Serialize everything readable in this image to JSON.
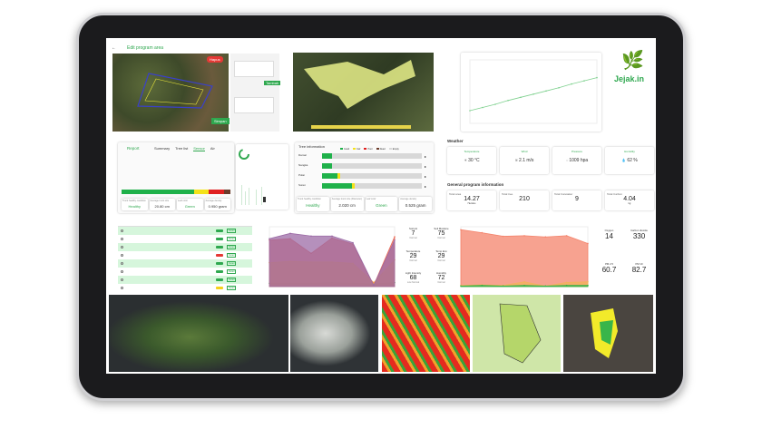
{
  "logo": {
    "text": "Jejak.in",
    "color": "#2fa84f"
  },
  "edit_area": {
    "title": "Edit program area",
    "delete_label": "Hapus",
    "save_label": "Simpan",
    "add_label": "Tambah"
  },
  "report": {
    "title": "Report",
    "tabs": [
      "Summary",
      "Tree list",
      "Sensor",
      "Air"
    ],
    "active_tab": "Sensor"
  },
  "tree_information": {
    "title": "Tree information",
    "legend": [
      "Good",
      "Fair",
      "Poor",
      "Dead",
      "Empty"
    ],
    "species": [
      {
        "name": "Damar",
        "good": 0.1,
        "fair": 0,
        "poor": 0
      },
      {
        "name": "Nangka",
        "good": 0.1,
        "fair": 0,
        "poor": 0
      },
      {
        "name": "Pulai",
        "good": 0.15,
        "fair": 0.03,
        "poor": 0
      },
      {
        "name": "Suren",
        "good": 0.3,
        "fair": 0.03,
        "poor": 0
      }
    ],
    "stats": [
      {
        "label": "Trunk healthy condition",
        "value": "Healthy"
      },
      {
        "label": "Average trunk size (Diameter)",
        "value": "2.020 cm"
      },
      {
        "label": "Leaf color",
        "value": "Green"
      },
      {
        "label": "Average density",
        "value": "0.525 gram"
      }
    ]
  },
  "report_stats": [
    {
      "label": "Trunk healthy condition",
      "value": "Healthy"
    },
    {
      "label": "Average trunk size",
      "value": "20.80 cm"
    },
    {
      "label": "Leaf color",
      "value": "Green"
    },
    {
      "label": "Average density",
      "value": "0.950 gram"
    }
  ],
  "weather": {
    "title": "Weather",
    "items": [
      {
        "label": "Temperature",
        "value": "30 °C",
        "icon": "sun-icon"
      },
      {
        "label": "Wind",
        "value": "2.1 m/s",
        "icon": "wind-icon"
      },
      {
        "label": "Pressure",
        "value": "1009 hpa",
        "icon": "pressure-icon"
      },
      {
        "label": "Humidity",
        "value": "62 %",
        "icon": "droplet-icon"
      }
    ]
  },
  "general": {
    "title": "General program information",
    "items": [
      {
        "label": "Total area",
        "value": "14.27",
        "unit": "Hectare"
      },
      {
        "label": "Total tree",
        "value": "210",
        "unit": ""
      },
      {
        "label": "Total Caretaker",
        "value": "9",
        "unit": ""
      },
      {
        "label": "Total Carbon",
        "value": "4.04",
        "unit": "kg"
      }
    ]
  },
  "soil_stats": [
    {
      "label": "Soil pH",
      "value": "7",
      "sub": "Normal"
    },
    {
      "label": "Soil Moisture",
      "value": "75",
      "sub": "Normal"
    },
    {
      "label": "Temperature",
      "value": "29",
      "sub": "Normal"
    },
    {
      "label": "Temp Env",
      "value": "29",
      "sub": "Normal"
    },
    {
      "label": "Light Intensity",
      "value": "68",
      "sub": "Low Normal"
    },
    {
      "label": "Humidity",
      "value": "72",
      "sub": "Normal"
    }
  ],
  "air_stats": [
    {
      "label": "Oxygen",
      "value": "14"
    },
    {
      "label": "Carbon dioxide",
      "value": "330"
    },
    {
      "label": "PM 2.5",
      "value": "60.7"
    },
    {
      "label": "PM 10",
      "value": "82.7"
    }
  ],
  "table": {
    "status_colors": [
      "#2fa84f",
      "#2fa84f",
      "#2fa84f",
      "#e53935",
      "#2fa84f",
      "#2fa84f",
      "#2fa84f",
      "#f5d21b"
    ],
    "detail_label": "Detail"
  },
  "colors": {
    "accent": "#2fa84f",
    "good": "#1fb14a",
    "fair": "#f4e21a",
    "poor": "#e02020",
    "dead": "#6b3b2a",
    "empty": "#d8d8d8"
  },
  "chart_data": [
    {
      "type": "area",
      "series": [
        {
          "name": "Soil pH",
          "values": [
            5,
            5,
            5,
            6,
            5,
            4,
            6
          ]
        },
        {
          "name": "Soil Moisture",
          "values": [
            70,
            72,
            50,
            73,
            64,
            2,
            75
          ]
        },
        {
          "name": "Temperature",
          "values": [
            36,
            38,
            37,
            37,
            35,
            6,
            40
          ]
        },
        {
          "name": "Humidity",
          "values": [
            72,
            80,
            76,
            76,
            66,
            2,
            70
          ]
        }
      ],
      "colors": [
        "#2fa84f",
        "#ea6a55",
        "#f59b45",
        "#9c6ba6"
      ]
    },
    {
      "type": "area",
      "series": [
        {
          "name": "CO2",
          "values": [
            95,
            90,
            84,
            85,
            83,
            85,
            72
          ]
        },
        {
          "name": "PM 2.5",
          "values": [
            2,
            3,
            2,
            8,
            1,
            7,
            8
          ]
        },
        {
          "name": "O2",
          "values": [
            1,
            2,
            1,
            2,
            1,
            2,
            2
          ]
        }
      ],
      "colors": [
        "#f4836b",
        "#f3b25b",
        "#35b34a"
      ]
    },
    {
      "type": "line",
      "series": [
        {
          "values": [
            20,
            25,
            30,
            36,
            41,
            46,
            51,
            56,
            62,
            67,
            72
          ]
        }
      ],
      "colors": [
        "#7fd18f"
      ]
    }
  ]
}
